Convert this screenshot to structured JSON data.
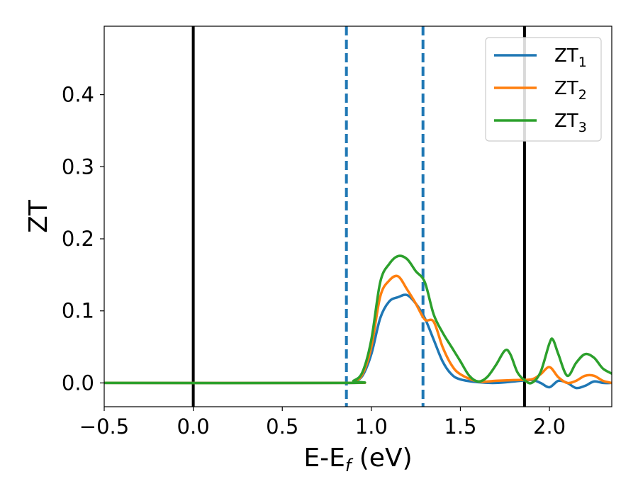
{
  "chart_data": {
    "type": "line",
    "xlabel": "E-E",
    "xlabel_sub": "f",
    "xlabel_unit": " (eV)",
    "ylabel": "ZT",
    "xlim": [
      -0.5,
      2.35
    ],
    "ylim": [
      -0.033,
      0.495
    ],
    "x_ticks": [
      -0.5,
      0.0,
      0.5,
      1.0,
      1.5,
      2.0
    ],
    "x_tick_labels": [
      "−0.5",
      "0.0",
      "0.5",
      "1.0",
      "1.5",
      "2.0"
    ],
    "y_ticks": [
      0.0,
      0.1,
      0.2,
      0.3,
      0.4
    ],
    "y_tick_labels": [
      "0.0",
      "0.1",
      "0.2",
      "0.3",
      "0.4"
    ],
    "grid": false,
    "legend_position": "top-right",
    "vertical_lines": [
      {
        "x": 0.0,
        "style": "solid",
        "color": "#000000"
      },
      {
        "x": 1.86,
        "style": "solid",
        "color": "#000000"
      },
      {
        "x": 0.86,
        "style": "dashed",
        "color": "#1f77b4"
      },
      {
        "x": 1.29,
        "style": "dashed",
        "color": "#1f77b4"
      }
    ],
    "series": [
      {
        "name": "ZT",
        "subscript": "1",
        "color": "#1f77b4",
        "points": [
          [
            -0.5,
            0
          ],
          [
            0.85,
            0
          ],
          [
            0.9,
            0.002
          ],
          [
            0.95,
            0.01
          ],
          [
            1.0,
            0.04
          ],
          [
            1.05,
            0.09
          ],
          [
            1.1,
            0.113
          ],
          [
            1.15,
            0.119
          ],
          [
            1.2,
            0.122
          ],
          [
            1.25,
            0.11
          ],
          [
            1.3,
            0.09
          ],
          [
            1.35,
            0.06
          ],
          [
            1.4,
            0.03
          ],
          [
            1.45,
            0.012
          ],
          [
            1.5,
            0.005
          ],
          [
            1.6,
            0.001
          ],
          [
            1.7,
            0.0
          ],
          [
            1.8,
            0.002
          ],
          [
            1.9,
            0.004
          ],
          [
            1.95,
            0.0
          ],
          [
            2.0,
            -0.006
          ],
          [
            2.05,
            0.003
          ],
          [
            2.1,
            0.0
          ],
          [
            2.15,
            -0.007
          ],
          [
            2.2,
            -0.004
          ],
          [
            2.25,
            0.002
          ],
          [
            2.3,
            0.0
          ],
          [
            2.35,
            0.0
          ]
        ]
      },
      {
        "name": "ZT",
        "subscript": "2",
        "color": "#ff7f0e",
        "points": [
          [
            -0.5,
            0
          ],
          [
            0.85,
            0
          ],
          [
            0.9,
            0.002
          ],
          [
            0.95,
            0.012
          ],
          [
            1.0,
            0.05
          ],
          [
            1.05,
            0.12
          ],
          [
            1.1,
            0.142
          ],
          [
            1.15,
            0.148
          ],
          [
            1.2,
            0.13
          ],
          [
            1.25,
            0.11
          ],
          [
            1.3,
            0.088
          ],
          [
            1.35,
            0.085
          ],
          [
            1.4,
            0.05
          ],
          [
            1.45,
            0.025
          ],
          [
            1.5,
            0.012
          ],
          [
            1.6,
            0.002
          ],
          [
            1.7,
            0.003
          ],
          [
            1.8,
            0.004
          ],
          [
            1.9,
            0.005
          ],
          [
            1.95,
            0.012
          ],
          [
            2.0,
            0.022
          ],
          [
            2.05,
            0.008
          ],
          [
            2.1,
            0.0
          ],
          [
            2.15,
            0.003
          ],
          [
            2.2,
            0.01
          ],
          [
            2.25,
            0.01
          ],
          [
            2.3,
            0.003
          ],
          [
            2.35,
            0.0
          ]
        ]
      },
      {
        "name": "ZT",
        "subscript": "3",
        "color": "#2ca02c",
        "points": [
          [
            -0.5,
            0
          ],
          [
            0.85,
            0
          ],
          [
            0.9,
            0.003
          ],
          [
            0.95,
            0.015
          ],
          [
            1.0,
            0.06
          ],
          [
            1.05,
            0.14
          ],
          [
            1.1,
            0.165
          ],
          [
            1.15,
            0.176
          ],
          [
            1.2,
            0.172
          ],
          [
            1.25,
            0.155
          ],
          [
            1.3,
            0.14
          ],
          [
            1.35,
            0.095
          ],
          [
            1.4,
            0.07
          ],
          [
            1.45,
            0.05
          ],
          [
            1.5,
            0.03
          ],
          [
            1.55,
            0.01
          ],
          [
            1.6,
            0.002
          ],
          [
            1.65,
            0.008
          ],
          [
            1.7,
            0.025
          ],
          [
            1.75,
            0.045
          ],
          [
            1.78,
            0.04
          ],
          [
            1.82,
            0.015
          ],
          [
            1.86,
            0.004
          ],
          [
            1.9,
            0.0
          ],
          [
            1.95,
            0.015
          ],
          [
            2.0,
            0.055
          ],
          [
            2.02,
            0.06
          ],
          [
            2.05,
            0.04
          ],
          [
            2.1,
            0.01
          ],
          [
            2.15,
            0.028
          ],
          [
            2.2,
            0.04
          ],
          [
            2.25,
            0.035
          ],
          [
            2.3,
            0.02
          ],
          [
            2.35,
            0.013
          ]
        ]
      }
    ]
  }
}
